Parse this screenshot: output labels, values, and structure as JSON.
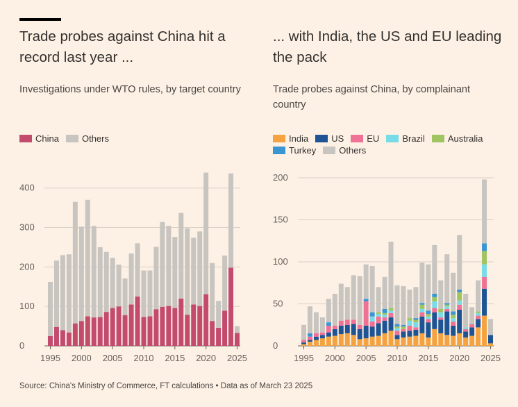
{
  "charts": {
    "left": {
      "title": "Trade probes against China hit a record last year ...",
      "subtitle": "Investigations under WTO rules, by target country"
    },
    "right": {
      "title": "... with India, the US and EU leading the pack",
      "subtitle": "Trade probes against China, by complainant country"
    }
  },
  "source": "Source: China's Ministry of Commerce, FT calculations • Data as of March 23 2025",
  "colors": {
    "china": "#c24b6e",
    "others": "#c8c4c0",
    "india": "#f5a340",
    "us": "#1e5494",
    "eu": "#ef7196",
    "brazil": "#78dbe8",
    "australia": "#a0c462",
    "turkey": "#3a96d3"
  },
  "chart_data": [
    {
      "type": "bar",
      "stacked": true,
      "x": [
        1995,
        1996,
        1997,
        1998,
        1999,
        2000,
        2001,
        2002,
        2003,
        2004,
        2005,
        2006,
        2007,
        2008,
        2009,
        2010,
        2011,
        2012,
        2013,
        2014,
        2015,
        2016,
        2017,
        2018,
        2019,
        2020,
        2021,
        2022,
        2023,
        2024,
        2025
      ],
      "series": [
        {
          "name": "China",
          "values": [
            25,
            48,
            40,
            34,
            57,
            63,
            75,
            72,
            73,
            86,
            96,
            100,
            78,
            105,
            125,
            73,
            75,
            93,
            99,
            101,
            96,
            120,
            79,
            105,
            101,
            131,
            63,
            46,
            89,
            198,
            33
          ]
        },
        {
          "name": "Others",
          "values": [
            137,
            168,
            190,
            198,
            308,
            239,
            295,
            232,
            177,
            152,
            127,
            106,
            93,
            129,
            135,
            118,
            116,
            158,
            215,
            203,
            180,
            217,
            219,
            169,
            189,
            308,
            147,
            68,
            140,
            239,
            17
          ]
        }
      ],
      "ylim": [
        0,
        440
      ],
      "yticks": [
        0,
        100,
        200,
        300,
        400
      ],
      "xticks": [
        1995,
        2000,
        2005,
        2010,
        2015,
        2020,
        2025
      ],
      "legend": "top-left",
      "grid": true
    },
    {
      "type": "bar",
      "stacked": true,
      "x": [
        1995,
        1996,
        1997,
        1998,
        1999,
        2000,
        2001,
        2002,
        2003,
        2004,
        2005,
        2006,
        2007,
        2008,
        2009,
        2010,
        2011,
        2012,
        2013,
        2014,
        2015,
        2016,
        2017,
        2018,
        2019,
        2020,
        2021,
        2022,
        2023,
        2024,
        2025
      ],
      "series": [
        {
          "name": "India",
          "values": [
            2,
            5,
            7,
            9,
            11,
            12,
            14,
            15,
            13,
            8,
            9,
            11,
            12,
            15,
            18,
            8,
            10,
            11,
            12,
            15,
            10,
            20,
            15,
            13,
            12,
            15,
            10,
            12,
            22,
            36,
            3
          ]
        },
        {
          "name": "US",
          "values": [
            2,
            2,
            4,
            4,
            5,
            8,
            10,
            10,
            13,
            12,
            15,
            12,
            15,
            15,
            16,
            5,
            7,
            7,
            7,
            20,
            18,
            20,
            16,
            28,
            12,
            28,
            7,
            10,
            10,
            32,
            10
          ]
        },
        {
          "name": "EU",
          "values": [
            3,
            4,
            4,
            3,
            8,
            4,
            6,
            6,
            5,
            5,
            29,
            6,
            8,
            4,
            5,
            5,
            3,
            6,
            3,
            5,
            4,
            5,
            3,
            3,
            5,
            6,
            3,
            4,
            4,
            14,
            0
          ]
        },
        {
          "name": "Brazil",
          "values": [
            0,
            0,
            0,
            0,
            0,
            0,
            0,
            0,
            0,
            0,
            0,
            6,
            3,
            3,
            3,
            3,
            0,
            6,
            6,
            4,
            3,
            8,
            6,
            3,
            4,
            5,
            2,
            1,
            3,
            15,
            0
          ]
        },
        {
          "name": "Australia",
          "values": [
            0,
            0,
            0,
            0,
            0,
            0,
            0,
            0,
            0,
            0,
            0,
            0,
            2,
            2,
            3,
            2,
            3,
            3,
            3,
            5,
            3,
            5,
            4,
            2,
            4,
            10,
            0,
            0,
            2,
            16,
            0
          ]
        },
        {
          "name": "Turkey",
          "values": [
            0,
            4,
            0,
            0,
            4,
            0,
            0,
            0,
            0,
            0,
            3,
            5,
            0,
            5,
            0,
            3,
            2,
            0,
            2,
            2,
            4,
            4,
            0,
            2,
            4,
            3,
            0,
            0,
            0,
            9,
            0
          ]
        },
        {
          "name": "Others",
          "values": [
            18,
            32,
            25,
            18,
            28,
            38,
            44,
            39,
            53,
            58,
            41,
            55,
            30,
            38,
            79,
            46,
            46,
            34,
            37,
            48,
            55,
            58,
            34,
            58,
            46,
            65,
            40,
            19,
            37,
            76,
            19
          ]
        }
      ],
      "ylim": [
        0,
        205
      ],
      "yticks": [
        0,
        50,
        100,
        150,
        200
      ],
      "xticks": [
        1995,
        2000,
        2005,
        2010,
        2015,
        2020,
        2025
      ],
      "legend": "top-left",
      "grid": true
    }
  ]
}
